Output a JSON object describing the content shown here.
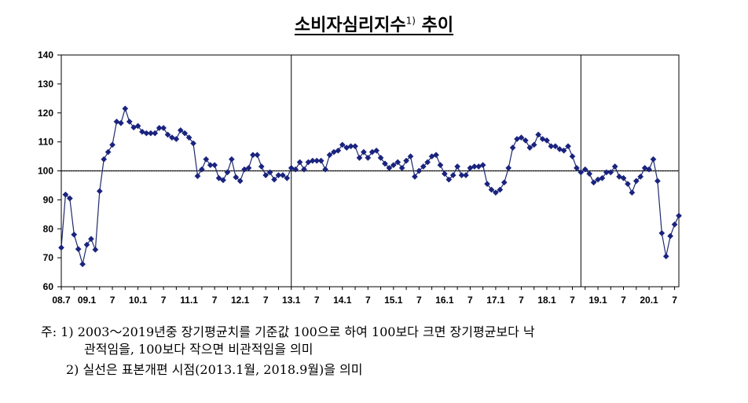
{
  "title": "소비자심리지수",
  "title_sup": "1)",
  "title_suffix": "추이",
  "notes": {
    "line1": "주: 1) 2003～2019년중 장기평균치를 기준값 100으로 하여 100보다 크면 장기평균보다 낙",
    "line1b": "관적임을, 100보다 작으면 비관적임을 의미",
    "line2": "2) 실선은 표본개편 시점(2013.1월, 2018.9월)을 의미"
  },
  "colors": {
    "series": "#1f2a6e",
    "marker": "#1a237e",
    "axis": "#000000"
  },
  "chart_data": {
    "type": "line",
    "title": "소비자심리지수 추이",
    "xlabel": "",
    "ylabel": "",
    "ylim": [
      60,
      140
    ],
    "yticks": [
      60,
      70,
      80,
      90,
      100,
      110,
      120,
      130,
      140
    ],
    "xtick_labels": [
      {
        "index": 0,
        "label": "08.7"
      },
      {
        "index": 6,
        "label": "09.1"
      },
      {
        "index": 12,
        "label": "7"
      },
      {
        "index": 18,
        "label": "10.1"
      },
      {
        "index": 24,
        "label": "7"
      },
      {
        "index": 30,
        "label": "11.1"
      },
      {
        "index": 36,
        "label": "7"
      },
      {
        "index": 42,
        "label": "12.1"
      },
      {
        "index": 48,
        "label": "7"
      },
      {
        "index": 54,
        "label": "13.1"
      },
      {
        "index": 60,
        "label": "7"
      },
      {
        "index": 66,
        "label": "14.1"
      },
      {
        "index": 72,
        "label": "7"
      },
      {
        "index": 78,
        "label": "15.1"
      },
      {
        "index": 84,
        "label": "7"
      },
      {
        "index": 90,
        "label": "16.1"
      },
      {
        "index": 96,
        "label": "7"
      },
      {
        "index": 102,
        "label": "17.1"
      },
      {
        "index": 108,
        "label": "7"
      },
      {
        "index": 114,
        "label": "18.1"
      },
      {
        "index": 120,
        "label": "7"
      },
      {
        "index": 126,
        "label": "19.1"
      },
      {
        "index": 132,
        "label": "7"
      },
      {
        "index": 138,
        "label": "20.1"
      },
      {
        "index": 144,
        "label": "7"
      }
    ],
    "reference_line": 100,
    "vertical_lines": [
      "13.1",
      "18.9"
    ],
    "grid": false,
    "series": [
      {
        "start": "2008.7",
        "values": [
          73.5,
          91.8,
          90.5,
          78,
          73,
          67.8,
          74.5,
          76.5,
          72.8,
          93,
          104,
          106.5,
          109,
          117,
          116.5,
          121.5,
          117,
          115,
          115.5,
          113.5,
          113,
          113,
          113,
          114.8,
          114.8,
          112.5,
          111.5,
          111,
          114,
          113,
          111.5,
          109.5,
          98.2,
          100.5,
          104,
          102,
          102,
          97.5,
          96.8,
          99.5,
          104,
          97.8,
          96.5,
          100.5,
          101,
          105.5,
          105.5,
          101.5,
          98.5,
          99.5,
          97,
          98.5,
          98.5,
          97.5,
          101,
          100.5,
          103,
          100.5,
          103,
          103.5,
          103.5,
          103.5,
          100.5,
          105.5,
          106.5,
          107,
          109,
          108,
          108.5,
          108.5,
          104.5,
          106.5,
          104.5,
          106.5,
          107,
          104.5,
          102.5,
          101,
          102,
          103,
          101,
          103.5,
          105,
          98,
          100,
          101.5,
          103,
          105,
          105.5,
          102,
          99,
          97,
          98.5,
          101.5,
          98.5,
          98.5,
          101,
          101.5,
          101.5,
          102,
          95.5,
          93.5,
          92.5,
          93.5,
          96,
          101,
          108,
          111,
          111.5,
          110.5,
          108,
          109,
          112.5,
          111,
          110.5,
          108.5,
          108.5,
          107.5,
          107,
          108.5,
          105,
          101,
          99.5,
          100.5,
          99,
          96,
          97,
          97.5,
          99.5,
          99.5,
          101.5,
          98,
          97.5,
          95.5,
          92.5,
          96.5,
          98,
          101,
          100.5,
          104,
          96.5,
          78.5,
          70.5,
          77.5,
          81.5,
          84.5
        ]
      }
    ]
  }
}
